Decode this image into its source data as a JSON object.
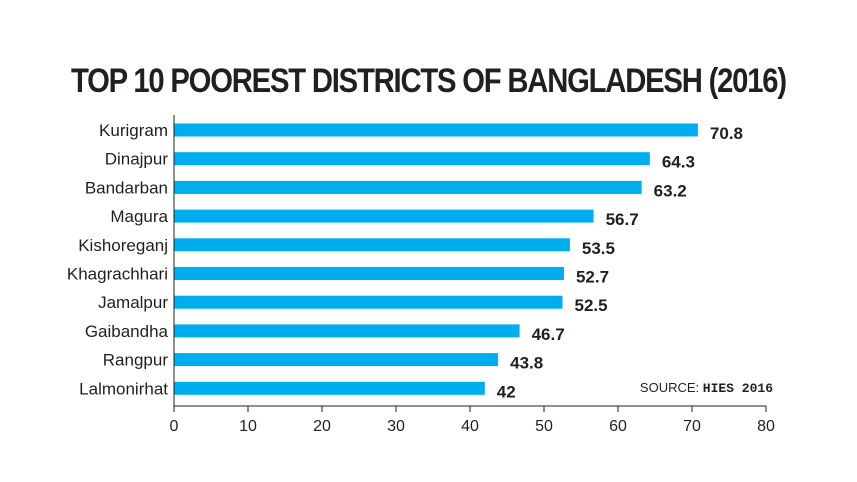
{
  "chart_data": {
    "type": "bar",
    "orientation": "horizontal",
    "title": "TOP 10 POOREST DISTRICTS OF BANGLADESH (2016)",
    "categories": [
      "Kurigram",
      "Dinajpur",
      "Bandarban",
      "Magura",
      "Kishoreganj",
      "Khagrachhari",
      "Jamalpur",
      "Gaibandha",
      "Rangpur",
      "Lalmonirhat"
    ],
    "values": [
      70.8,
      64.3,
      63.2,
      56.7,
      53.5,
      52.7,
      52.5,
      46.7,
      43.8,
      42
    ],
    "value_labels": [
      "70.8",
      "64.3",
      "63.2",
      "56.7",
      "53.5",
      "52.7",
      "52.5",
      "46.7",
      "43.8",
      "42"
    ],
    "xlim": [
      0,
      80
    ],
    "x_ticks": [
      0,
      10,
      20,
      30,
      40,
      50,
      60,
      70,
      80
    ],
    "bar_color": "#00aeef",
    "grid": false
  },
  "source": {
    "prefix": "SOURCE:",
    "name": "HIES 2016"
  }
}
